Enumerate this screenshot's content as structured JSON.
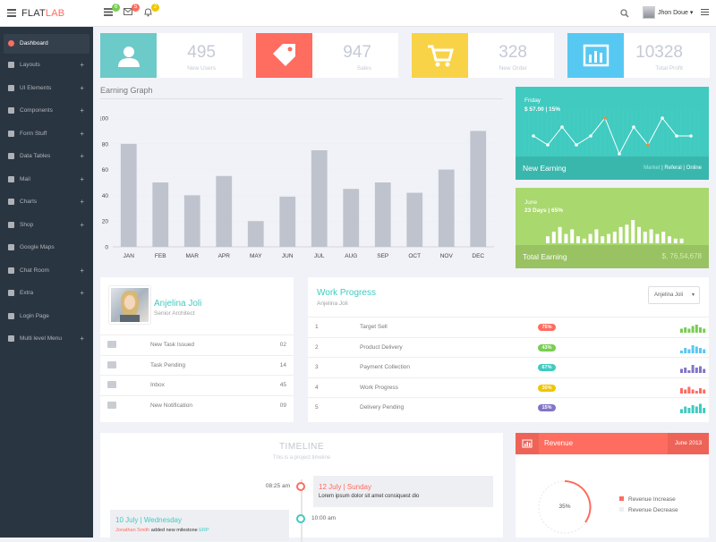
{
  "header": {
    "logo_main": "FLAT",
    "logo_accent": "LAB",
    "badges": [
      {
        "value": "6",
        "color": "#78cd51"
      },
      {
        "value": "5",
        "color": "#ff6c60"
      },
      {
        "value": "2",
        "color": "#f1c500"
      }
    ],
    "user_name": "Jhon Doue"
  },
  "sidebar": {
    "items": [
      {
        "label": "Dashboard",
        "plus": ""
      },
      {
        "label": "Layouts",
        "plus": "+"
      },
      {
        "label": "UI Elements",
        "plus": "+"
      },
      {
        "label": "Components",
        "plus": "+"
      },
      {
        "label": "Form Stuff",
        "plus": "+"
      },
      {
        "label": "Data Tables",
        "plus": "+"
      },
      {
        "label": "Mail",
        "plus": "+"
      },
      {
        "label": "Charts",
        "plus": "+"
      },
      {
        "label": "Shop",
        "plus": "+"
      },
      {
        "label": "Google Maps",
        "plus": ""
      },
      {
        "label": "Chat Room",
        "plus": "+"
      },
      {
        "label": "Extra",
        "plus": "+"
      },
      {
        "label": "Login Page",
        "plus": ""
      },
      {
        "label": "Multi level Menu",
        "plus": "+"
      }
    ]
  },
  "stats": [
    {
      "value": "495",
      "label": "New Users",
      "color": "#6ccac9",
      "icon": "user-icon"
    },
    {
      "value": "947",
      "label": "Sales",
      "color": "#ff6c60",
      "icon": "tag-icon"
    },
    {
      "value": "328",
      "label": "New Order",
      "color": "#f8d347",
      "icon": "cart-icon"
    },
    {
      "value": "10328",
      "label": "Total Profit",
      "color": "#57c8f2",
      "icon": "bar-chart-icon"
    }
  ],
  "earning_graph": {
    "title": "Earning Graph"
  },
  "chart_data": {
    "type": "bar",
    "categories": [
      "JAN",
      "FEB",
      "MAR",
      "APR",
      "MAY",
      "JUN",
      "JUL",
      "AUG",
      "SEP",
      "OCT",
      "NOV",
      "DEC"
    ],
    "values": [
      80,
      50,
      40,
      55,
      20,
      39,
      75,
      45,
      50,
      42,
      60,
      90
    ],
    "yticks": [
      0,
      20,
      40,
      60,
      80,
      100
    ],
    "ylim": [
      0,
      100
    ],
    "bar_color": "#bec3ce"
  },
  "new_earning": {
    "day": "Friday",
    "amount": "$ 57.00",
    "percent": "15%",
    "title": "New Earning",
    "links": [
      "Market",
      "Referal",
      "Online"
    ],
    "sparkline": [
      5,
      4,
      6,
      4,
      5,
      7,
      3,
      6,
      4,
      7,
      5,
      5
    ]
  },
  "total_earning": {
    "month": "June",
    "days": "23 Days",
    "percent": "65%",
    "title": "Total Earning",
    "amount": "$, 76,54,678",
    "bars": [
      3,
      5,
      7,
      4,
      6,
      3,
      2,
      4,
      6,
      3,
      4,
      5,
      7,
      8,
      10,
      7,
      5,
      6,
      4,
      5,
      3,
      2,
      2
    ]
  },
  "profile": {
    "name": "Anjelina Joli",
    "role": "Senior Architect",
    "rows": [
      {
        "icon": "tasks-icon",
        "label": "New Task Issued",
        "value": "02"
      },
      {
        "icon": "warning-icon",
        "label": "Task Pending",
        "value": "14"
      },
      {
        "icon": "envelope-icon",
        "label": "Inbox",
        "value": "45"
      },
      {
        "icon": "bell-icon",
        "label": "New Notification",
        "value": "09"
      }
    ]
  },
  "work_progress": {
    "title": "Work Progress",
    "subtitle": "Anjelina Joli",
    "select_value": "Anjelina Joli",
    "rows": [
      {
        "n": "1",
        "task": "Target Sell",
        "pct": "75%",
        "color": "#ff6c60",
        "spark": "#78cd51",
        "bars": [
          3,
          4,
          3,
          5,
          6,
          4,
          3
        ]
      },
      {
        "n": "2",
        "task": "Product Delivery",
        "pct": "43%",
        "color": "#78cd51",
        "spark": "#57c8f2",
        "bars": [
          2,
          4,
          3,
          6,
          5,
          4,
          3
        ]
      },
      {
        "n": "3",
        "task": "Payment Collection",
        "pct": "67%",
        "color": "#41cac0",
        "spark": "#8175c7",
        "bars": [
          3,
          4,
          2,
          6,
          4,
          5,
          3
        ]
      },
      {
        "n": "4",
        "task": "Work Progress",
        "pct": "30%",
        "color": "#f1c500",
        "spark": "#ff6c60",
        "bars": [
          4,
          3,
          5,
          3,
          2,
          4,
          3
        ]
      },
      {
        "n": "5",
        "task": "Delivery Pending",
        "pct": "15%",
        "color": "#8175c7",
        "spark": "#41cac0",
        "bars": [
          3,
          5,
          4,
          6,
          5,
          7,
          4
        ]
      }
    ]
  },
  "timeline": {
    "title": "TIMELINE",
    "subtitle": "This is a project timeline",
    "entries": [
      {
        "time": "08:25 am",
        "date": "12 July | Sunday",
        "text": "Lorem ipsum dolor sit amet consiquest dio"
      },
      {
        "time": "10:00 am",
        "date": "10 July | Wednesday",
        "person": "Jonathan Smith",
        "text": "added new milestone",
        "tag": "ERP"
      }
    ]
  },
  "revenue": {
    "title": "Revenue",
    "period": "June 2013",
    "percent": "35%",
    "legend": [
      {
        "label": "Revenue Increase",
        "color": "#ff6c60"
      },
      {
        "label": "Revenue Decrease",
        "color": "#eee"
      }
    ]
  }
}
